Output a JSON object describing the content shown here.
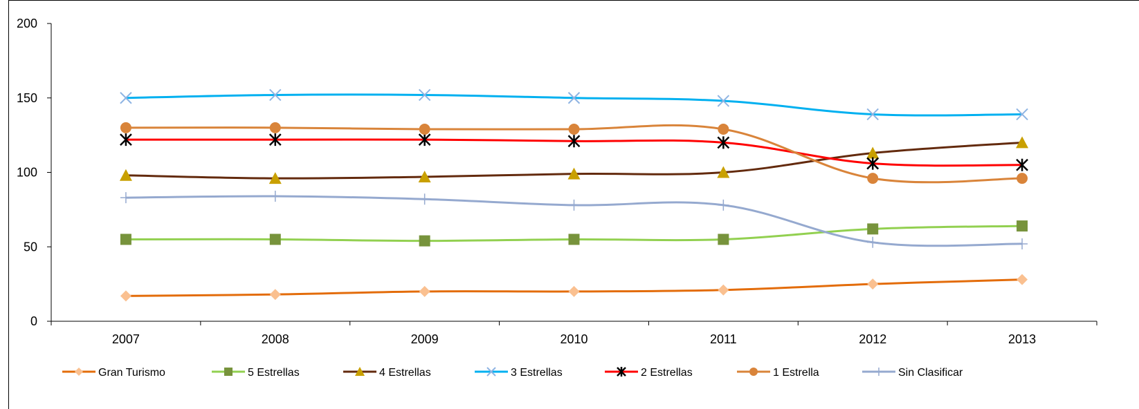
{
  "chart_data": {
    "type": "line",
    "categories": [
      "2007",
      "2008",
      "2009",
      "2010",
      "2011",
      "2012",
      "2013"
    ],
    "ylim": [
      0,
      200
    ],
    "yticks": [
      "0",
      "50",
      "100",
      "150",
      "200"
    ],
    "grid": false,
    "legend_position": "bottom",
    "series": [
      {
        "name": "Gran Turismo",
        "values": [
          17,
          18,
          20,
          20,
          21,
          25,
          28
        ],
        "line_color": "#E36C0A",
        "marker": "diamond",
        "marker_color": "#FAC090"
      },
      {
        "name": "5 Estrellas",
        "values": [
          55,
          55,
          54,
          55,
          55,
          62,
          64
        ],
        "line_color": "#92D050",
        "marker": "square",
        "marker_color": "#77933C"
      },
      {
        "name": "4 Estrellas",
        "values": [
          98,
          96,
          97,
          99,
          100,
          113,
          120
        ],
        "line_color": "#632A0D",
        "marker": "triangle",
        "marker_color": "#C9A000"
      },
      {
        "name": "3 Estrellas",
        "values": [
          150,
          152,
          152,
          150,
          148,
          139,
          139
        ],
        "line_color": "#00B0F0",
        "marker": "x",
        "marker_color": "#8EB4E3"
      },
      {
        "name": "2 Estrellas",
        "values": [
          122,
          122,
          122,
          121,
          120,
          106,
          105
        ],
        "line_color": "#FF0000",
        "marker": "star",
        "marker_color": "#000000"
      },
      {
        "name": "1 Estrella",
        "values": [
          130,
          130,
          129,
          129,
          129,
          96,
          96
        ],
        "line_color": "#D9843A",
        "marker": "circle",
        "marker_color": "#D9843A"
      },
      {
        "name": "Sin Clasificar",
        "values": [
          83,
          84,
          82,
          78,
          78,
          53,
          52
        ],
        "line_color": "#95A9CF",
        "marker": "plus",
        "marker_color": "#95A9CF"
      }
    ]
  }
}
